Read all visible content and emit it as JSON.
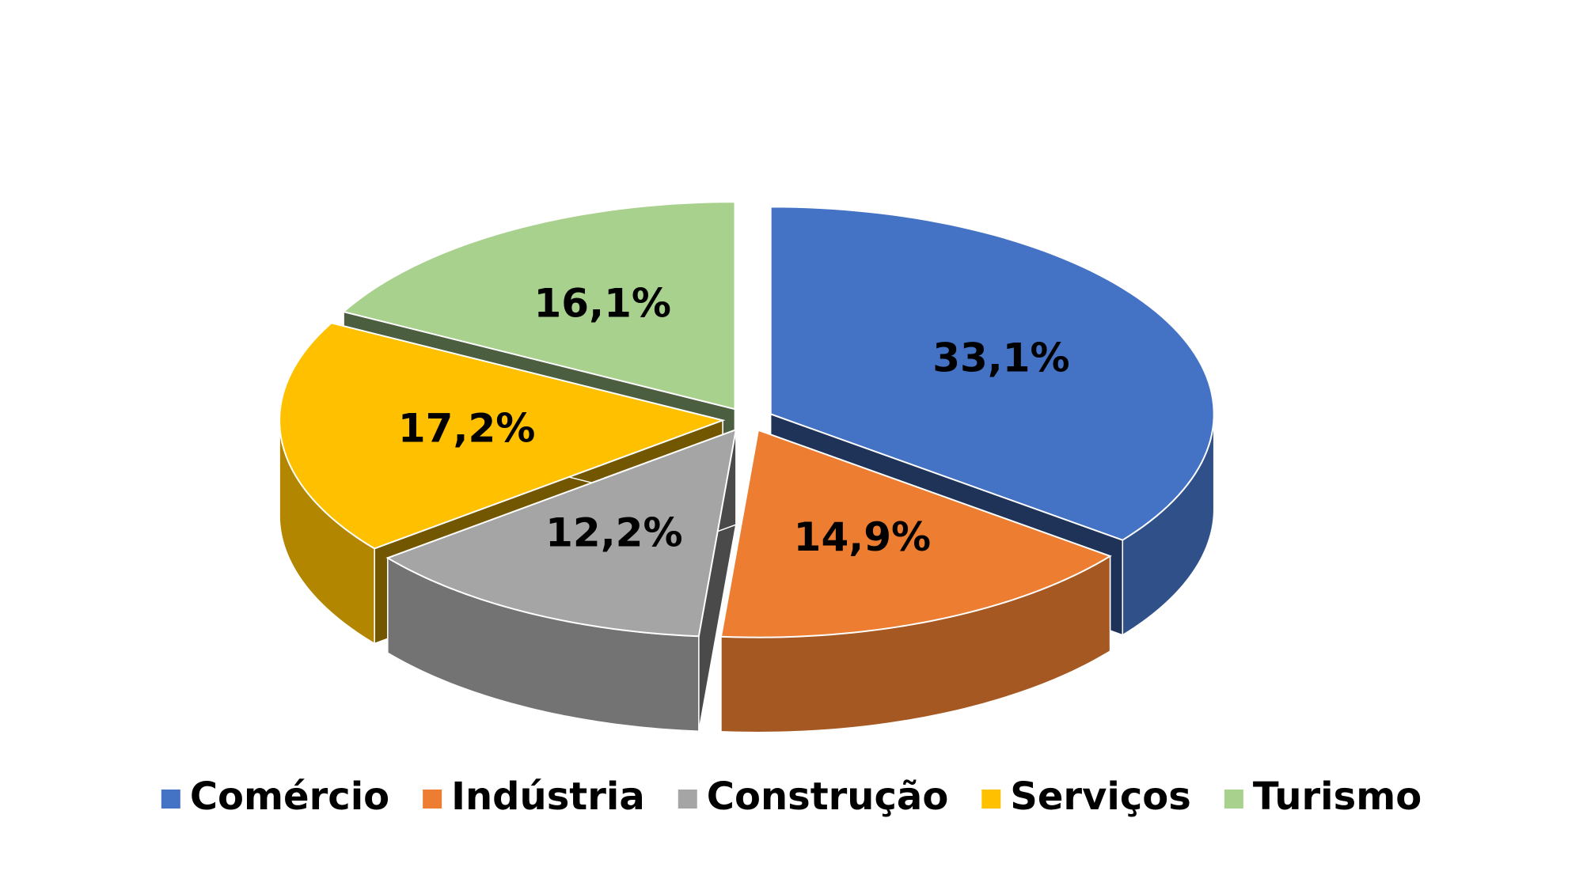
{
  "chart_data": {
    "type": "pie",
    "categories": [
      "Comércio",
      "Indústria",
      "Construção",
      "Serviços",
      "Turismo"
    ],
    "values": [
      33.1,
      14.9,
      12.2,
      17.2,
      16.1
    ],
    "value_labels": [
      "33,1%",
      "14,9%",
      "12,2%",
      "17,2%",
      "16,1%"
    ],
    "colors": [
      "#4472c4",
      "#ed7d31",
      "#a5a5a5",
      "#ffc000",
      "#a9d18e"
    ],
    "legend": "bottom"
  }
}
